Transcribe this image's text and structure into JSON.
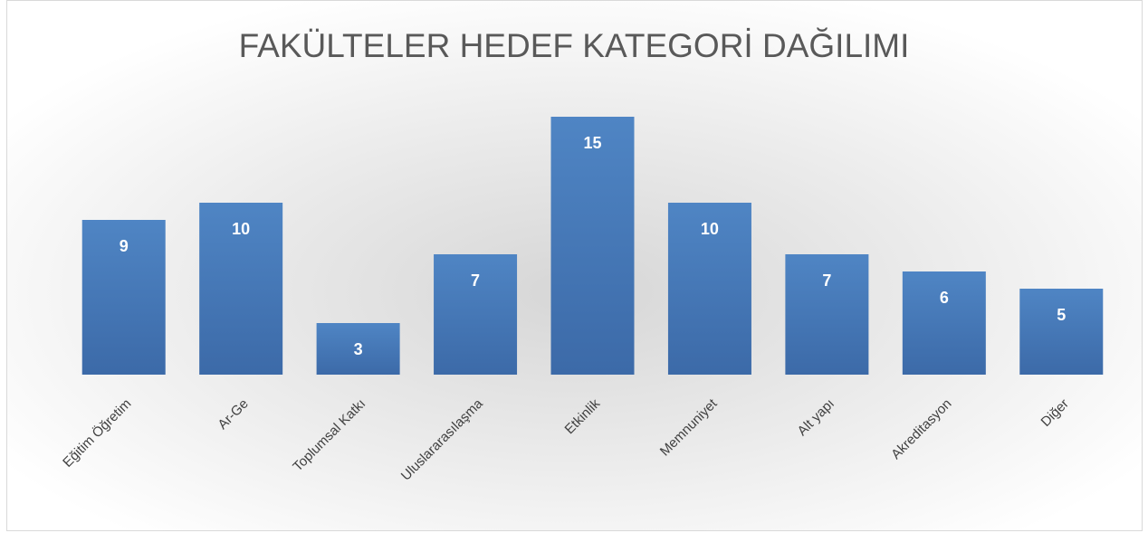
{
  "chart_data": {
    "type": "bar",
    "title": "FAKÜLTELER HEDEF KATEGORİ DAĞILIMI",
    "categories": [
      "Eğitim Öğretim",
      "Ar-Ge",
      "Toplumsal Katkı",
      "Uluslararasılaşma",
      "Etkinlik",
      "Memnuniyet",
      "Alt yapı",
      "Akreditasyon",
      "Diğer"
    ],
    "values": [
      9,
      10,
      3,
      7,
      15,
      10,
      7,
      6,
      5
    ],
    "color": "#4a7ebb"
  }
}
